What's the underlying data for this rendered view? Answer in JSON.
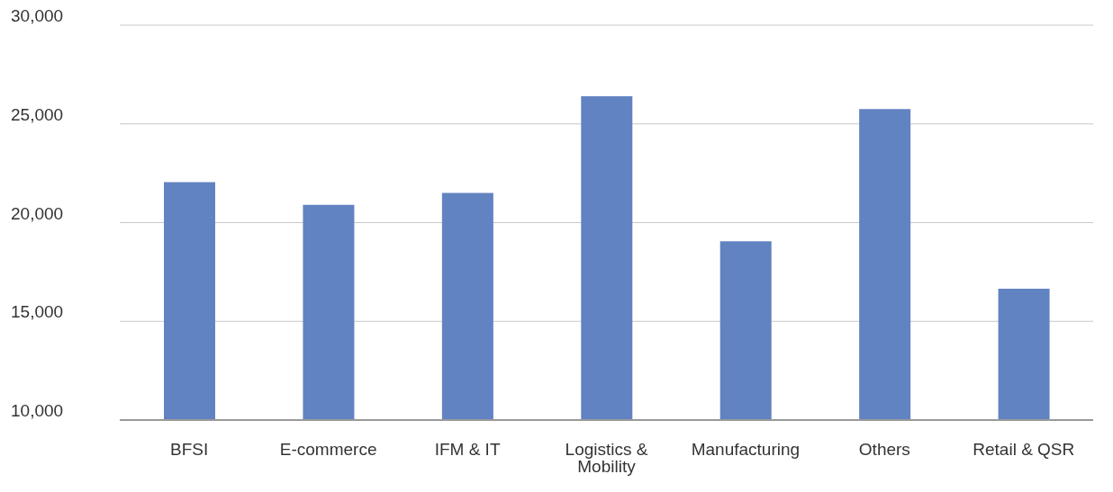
{
  "chart_data": {
    "type": "bar",
    "categories": [
      "BFSI",
      "E-commerce",
      "IFM & IT",
      "Logistics & Mobility",
      "Manufacturing",
      "Others",
      "Retail & QSR"
    ],
    "values": [
      22050,
      20900,
      21500,
      26400,
      19050,
      25750,
      16650
    ],
    "color": "#6283c2",
    "ylim": [
      10000,
      30000
    ],
    "yticks": [
      {
        "value": 10000,
        "label": "10,000"
      },
      {
        "value": 15000,
        "label": "15,000"
      },
      {
        "value": 20000,
        "label": "20,000"
      },
      {
        "value": 25000,
        "label": "25,000"
      },
      {
        "value": 30000,
        "label": "30,000"
      }
    ],
    "grid": "y",
    "legend": false
  }
}
